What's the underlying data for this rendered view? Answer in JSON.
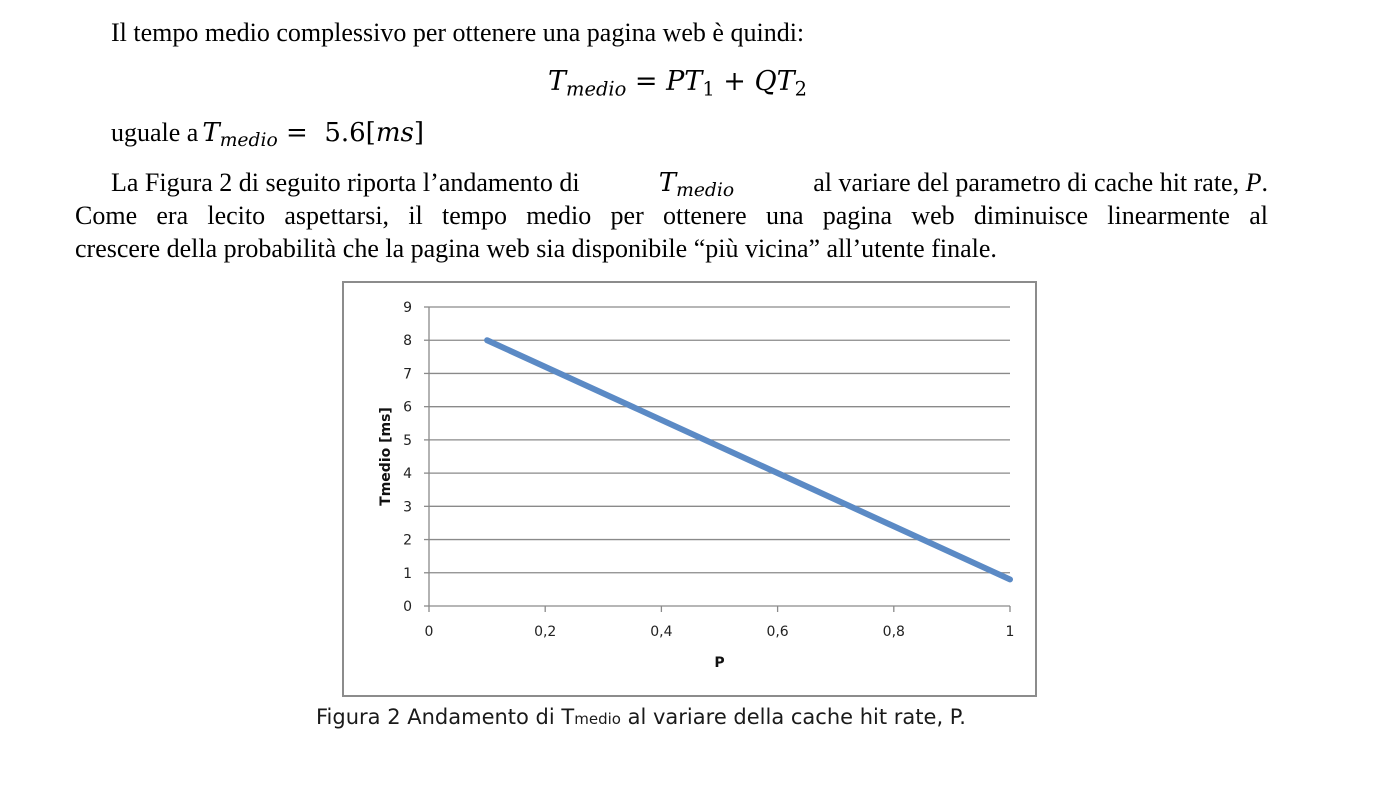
{
  "text": {
    "intro": "Il tempo medio complessivo per ottenere una pagina web è quindi:",
    "formula": {
      "lhs": "T",
      "lhs_sub": "medio",
      "eq": "=",
      "t1": "PT",
      "t1_sub": "1",
      "plus": "+",
      "t2": "QT",
      "t2_sub": "2"
    },
    "result": {
      "prefix": "uguale a",
      "var": "T",
      "var_sub": "medio",
      "eq": "=",
      "value": "5.6",
      "unit_open": "[",
      "unit": "ms",
      "unit_close": "]"
    },
    "para": {
      "l1_before": "La Figura 2 di seguito riporta l’andamento di",
      "l1_var": "T",
      "l1_sub": "medio",
      "l1_after": "al variare del parametro di cache hit rate,",
      "l1_p": "P",
      "l1_end": ".",
      "l2": "Come era lecito aspettarsi, il tempo medio per ottenere una pagina web diminuisce linearmente al",
      "l3": "crescere della probabilità che la pagina web sia disponibile “più vicina” all’utente finale."
    }
  },
  "caption": {
    "before": "Figura 2 Andamento di T",
    "small": "medio",
    "after": " al variare della cache hit rate, P."
  },
  "chart_data": {
    "type": "line",
    "xlabel": "P",
    "ylabel": "Tmedio [ms]",
    "xlim": [
      0,
      1
    ],
    "ylim": [
      0,
      9
    ],
    "xticks": [
      "0",
      "0,2",
      "0,4",
      "0,6",
      "0,8",
      "1"
    ],
    "yticks": [
      "0",
      "1",
      "2",
      "3",
      "4",
      "5",
      "6",
      "7",
      "8",
      "9"
    ],
    "grid": true,
    "legend": "none",
    "series": [
      {
        "x": [
          0.1,
          1.0
        ],
        "y": [
          8.0,
          0.8
        ],
        "color": "#5b8ac5"
      }
    ]
  }
}
